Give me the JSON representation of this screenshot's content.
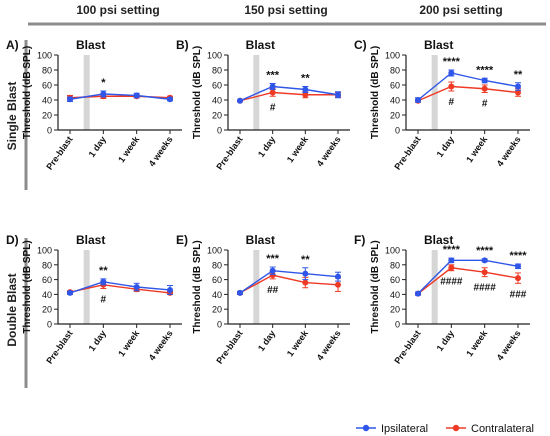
{
  "column_headers": [
    "100 psi setting",
    "150 psi setting",
    "200 psi setting"
  ],
  "row_headers": [
    "Single Blast",
    "Double Blast"
  ],
  "legend": {
    "placement": "bottom-right"
  },
  "colors": {
    "ipsilateral": "#2f56e8",
    "contralateral": "#ee3a25",
    "blast_band": "#d6d6d6",
    "header_bar": "#8c8c8c"
  },
  "chart_data": [
    {
      "panel": "A)",
      "type": "line",
      "annotation": "Blast",
      "categories": [
        "Pre-blast",
        "1 day",
        "1 week",
        "4 weeks"
      ],
      "ylabel": "Threshold (dB SPL)",
      "ylim": [
        0,
        100
      ],
      "yticks": [
        0,
        20,
        40,
        60,
        80,
        100
      ],
      "series": [
        {
          "name": "Ipsilateral",
          "values": [
            41,
            48,
            46,
            41
          ],
          "errors": [
            3,
            4,
            3,
            2
          ]
        },
        {
          "name": "Contralateral",
          "values": [
            43,
            45,
            45,
            43
          ],
          "errors": [
            3,
            3,
            2,
            2
          ]
        }
      ],
      "sig_upper": [
        "",
        "*",
        "",
        ""
      ],
      "sig_lower": [
        "",
        "",
        "",
        ""
      ]
    },
    {
      "panel": "B)",
      "type": "line",
      "annotation": "Blast",
      "categories": [
        "Pre-blast",
        "1 day",
        "1 week",
        "4 weeks"
      ],
      "ylabel": "Threshold (dB SPL)",
      "ylim": [
        0,
        100
      ],
      "yticks": [
        0,
        20,
        40,
        60,
        80,
        100
      ],
      "series": [
        {
          "name": "Ipsilateral",
          "values": [
            39,
            58,
            54,
            47
          ],
          "errors": [
            1,
            4,
            4,
            4
          ]
        },
        {
          "name": "Contralateral",
          "values": [
            39,
            50,
            47,
            47
          ],
          "errors": [
            1,
            5,
            4,
            3
          ]
        }
      ],
      "sig_upper": [
        "",
        "***",
        "**",
        ""
      ],
      "sig_lower": [
        "",
        "#",
        "",
        ""
      ]
    },
    {
      "panel": "C)",
      "type": "line",
      "annotation": "Blast",
      "categories": [
        "Pre-blast",
        "1 day",
        "1 week",
        "4 weeks"
      ],
      "ylabel": "Threshold (dB SPL)",
      "ylim": [
        0,
        100
      ],
      "yticks": [
        0,
        20,
        40,
        60,
        80,
        100
      ],
      "series": [
        {
          "name": "Ipsilateral",
          "values": [
            40,
            76,
            66,
            58
          ],
          "errors": [
            3,
            4,
            3,
            5
          ]
        },
        {
          "name": "Contralateral",
          "values": [
            39,
            58,
            55,
            50
          ],
          "errors": [
            2,
            6,
            5,
            5
          ]
        }
      ],
      "sig_upper": [
        "",
        "****",
        "****",
        "**"
      ],
      "sig_lower": [
        "",
        "#",
        "#",
        ""
      ]
    },
    {
      "panel": "D)",
      "type": "line",
      "annotation": "Blast",
      "categories": [
        "Pre-blast",
        "1 day",
        "1 week",
        "4 weeks"
      ],
      "ylabel": "Threshold (dB SPL)",
      "ylim": [
        0,
        100
      ],
      "yticks": [
        0,
        20,
        40,
        60,
        80,
        100
      ],
      "series": [
        {
          "name": "Ipsilateral",
          "values": [
            42,
            57,
            50,
            46
          ],
          "errors": [
            2,
            4,
            5,
            6
          ]
        },
        {
          "name": "Contralateral",
          "values": [
            43,
            53,
            47,
            42
          ],
          "errors": [
            2,
            5,
            3,
            2
          ]
        }
      ],
      "sig_upper": [
        "",
        "**",
        "",
        ""
      ],
      "sig_lower": [
        "",
        "#",
        "",
        ""
      ]
    },
    {
      "panel": "E)",
      "type": "line",
      "annotation": "Blast",
      "categories": [
        "Pre-blast",
        "1 day",
        "1 week",
        "4 weeks"
      ],
      "ylabel": "Threshold (dB SPL)",
      "ylim": [
        0,
        100
      ],
      "yticks": [
        0,
        20,
        40,
        60,
        80,
        100
      ],
      "series": [
        {
          "name": "Ipsilateral",
          "values": [
            42,
            72,
            68,
            64
          ],
          "errors": [
            2,
            5,
            8,
            6
          ]
        },
        {
          "name": "Contralateral",
          "values": [
            42,
            66,
            56,
            53
          ],
          "errors": [
            2,
            5,
            7,
            9
          ]
        }
      ],
      "sig_upper": [
        "",
        "***",
        "**",
        ""
      ],
      "sig_lower": [
        "",
        "##",
        "",
        ""
      ]
    },
    {
      "panel": "F)",
      "type": "line",
      "annotation": "Blast",
      "categories": [
        "Pre-blast",
        "1 day",
        "1 week",
        "4 weeks"
      ],
      "ylabel": "Threshold (dB SPL)",
      "ylim": [
        0,
        100
      ],
      "yticks": [
        0,
        20,
        40,
        60,
        80,
        100
      ],
      "series": [
        {
          "name": "Ipsilateral",
          "values": [
            41,
            86,
            86,
            78
          ],
          "errors": [
            2,
            3,
            2,
            3
          ]
        },
        {
          "name": "Contralateral",
          "values": [
            41,
            76,
            70,
            62
          ],
          "errors": [
            2,
            4,
            6,
            7
          ]
        }
      ],
      "sig_upper": [
        "",
        "****",
        "****",
        "****"
      ],
      "sig_lower": [
        "",
        "####",
        "####",
        "###"
      ]
    }
  ]
}
